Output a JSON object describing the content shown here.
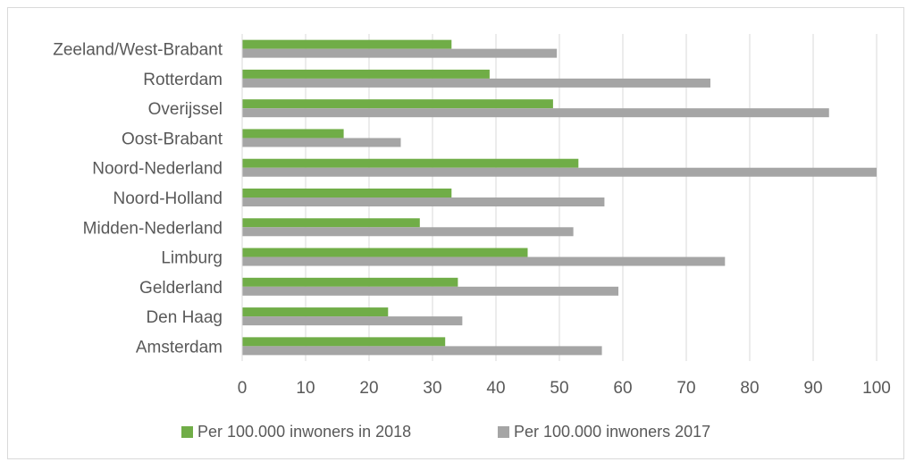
{
  "chart_data": {
    "type": "bar",
    "orientation": "horizontal",
    "categories": [
      "Amsterdam",
      "Den Haag",
      "Gelderland",
      "Limburg",
      "Midden-Nederland",
      "Noord-Holland",
      "Noord-Nederland",
      "Oost-Brabant",
      "Overijssel",
      "Rotterdam",
      "Zeeland/West-Brabant"
    ],
    "series": [
      {
        "name": "Per 100.000 inwoners in 2018",
        "color": "#70ad47",
        "values": [
          32,
          23,
          34,
          45,
          28,
          33,
          53,
          16,
          49,
          39,
          33
        ]
      },
      {
        "name": "Per 100.000 inwoners 2017",
        "color": "#a5a5a5",
        "values": [
          56.7,
          34.7,
          59.3,
          76.1,
          52.2,
          57.1,
          100,
          25,
          92.5,
          73.8,
          49.6
        ]
      }
    ],
    "xlim": [
      0,
      100
    ],
    "xticks": [
      0,
      10,
      20,
      30,
      40,
      50,
      60,
      70,
      80,
      90,
      100
    ],
    "title": "",
    "xlabel": "",
    "ylabel": "",
    "grid": "vertical",
    "legend_position": "bottom",
    "gridline_color": "#d9d9d9"
  }
}
